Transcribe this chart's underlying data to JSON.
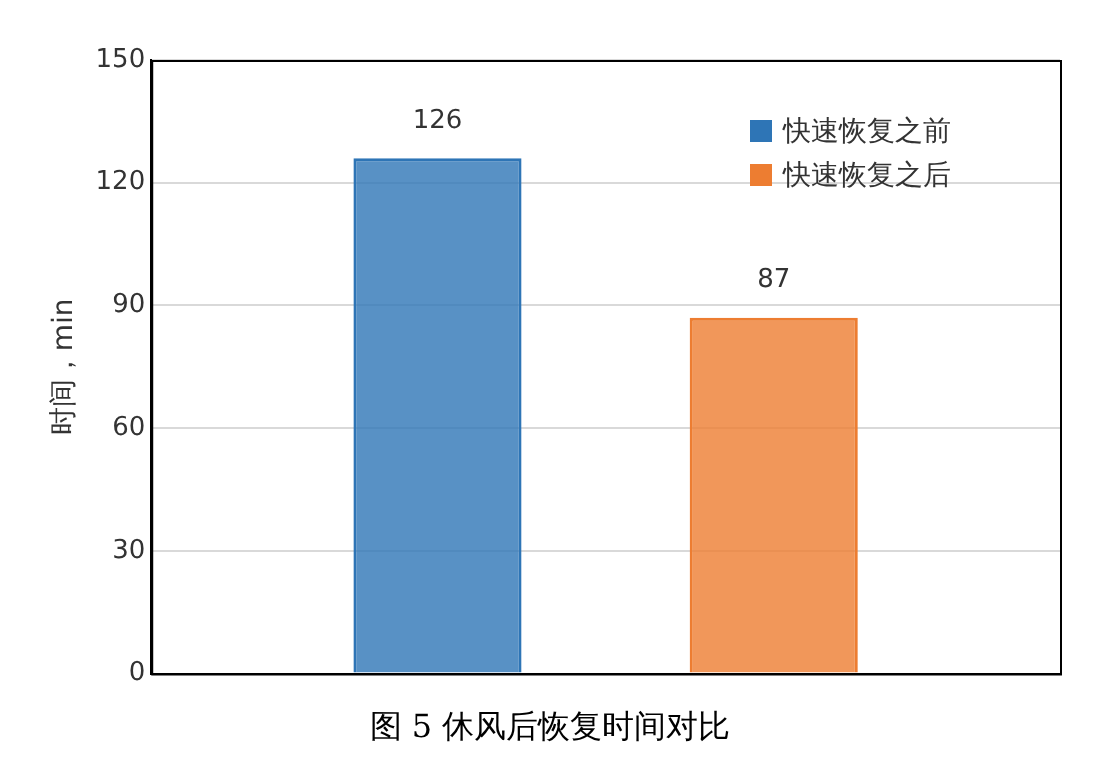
{
  "chart_data": {
    "type": "bar",
    "title": "图 5 休风后恢复时间对比",
    "ylabel": "时间，min",
    "categories": [
      null
    ],
    "series": [
      {
        "name": "快速恢复之前",
        "color": "#2e75b6",
        "values": [
          126
        ]
      },
      {
        "name": "快速恢复之后",
        "color": "#ed7d31",
        "values": [
          87
        ]
      }
    ],
    "ylim": [
      0,
      150
    ],
    "yticks": [
      0,
      30,
      60,
      90,
      120,
      150
    ],
    "grid": "y",
    "legend": "top right",
    "data_labels": true
  }
}
